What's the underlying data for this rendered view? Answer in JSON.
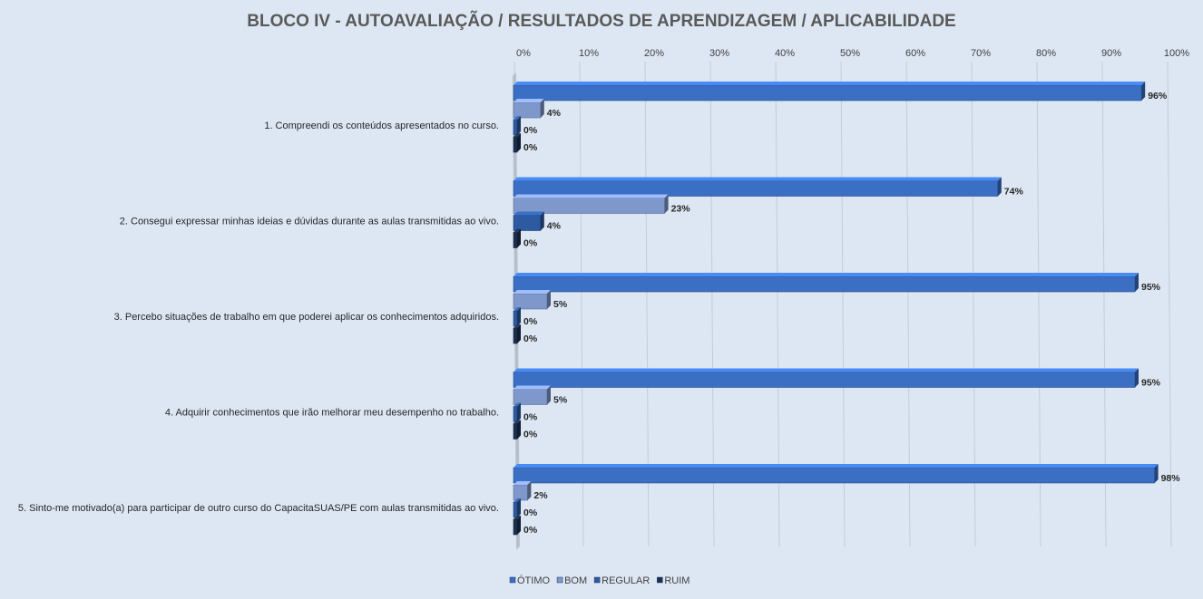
{
  "chart_data": {
    "type": "bar",
    "orientation": "horizontal",
    "title": "BLOCO IV - AUTOAVALIAÇÃO / RESULTADOS  DE APRENDIZAGEM  / APLICABILIDADE",
    "categories": [
      "1. Compreendi os conteúdos apresentados no curso.",
      "2. Consegui expressar minhas ideias e dúvidas durante as aulas transmitidas ao vivo.",
      "3. Percebo situações de trabalho em que poderei aplicar os conhecimentos adquiridos.",
      "4. Adquirir conhecimentos que irão melhorar meu desempenho no trabalho.",
      "5. Sinto-me motivado(a) para participar de outro curso do CapacitaSUAS/PE com aulas transmitidas ao vivo."
    ],
    "series": [
      {
        "name": "ÓTIMO",
        "color": "#3a6fc4",
        "values": [
          96,
          74,
          95,
          95,
          98
        ],
        "labels": [
          "96%",
          "74%",
          "95%",
          "95%",
          "98%"
        ]
      },
      {
        "name": "BOM",
        "color": "#7f98cc",
        "values": [
          4,
          23,
          5,
          5,
          2
        ],
        "labels": [
          "4%",
          "23%",
          "5%",
          "5%",
          "2%"
        ]
      },
      {
        "name": "REGULAR",
        "color": "#2d5aa0",
        "values": [
          0,
          4,
          0,
          0,
          0
        ],
        "labels": [
          "0%",
          "4%",
          "0%",
          "0%",
          "0%"
        ]
      },
      {
        "name": "RUIM",
        "color": "#1b2f4e",
        "values": [
          0,
          0,
          0,
          0,
          0
        ],
        "labels": [
          "0%",
          "0%",
          "0%",
          "0%",
          "0%"
        ]
      }
    ],
    "xlim": [
      0,
      100
    ],
    "xticks": [
      "0%",
      "10%",
      "20%",
      "30%",
      "40%",
      "50%",
      "60%",
      "70%",
      "80%",
      "90%",
      "100%"
    ],
    "axis_position": "top",
    "grid": true,
    "legend": "bottom-left"
  }
}
